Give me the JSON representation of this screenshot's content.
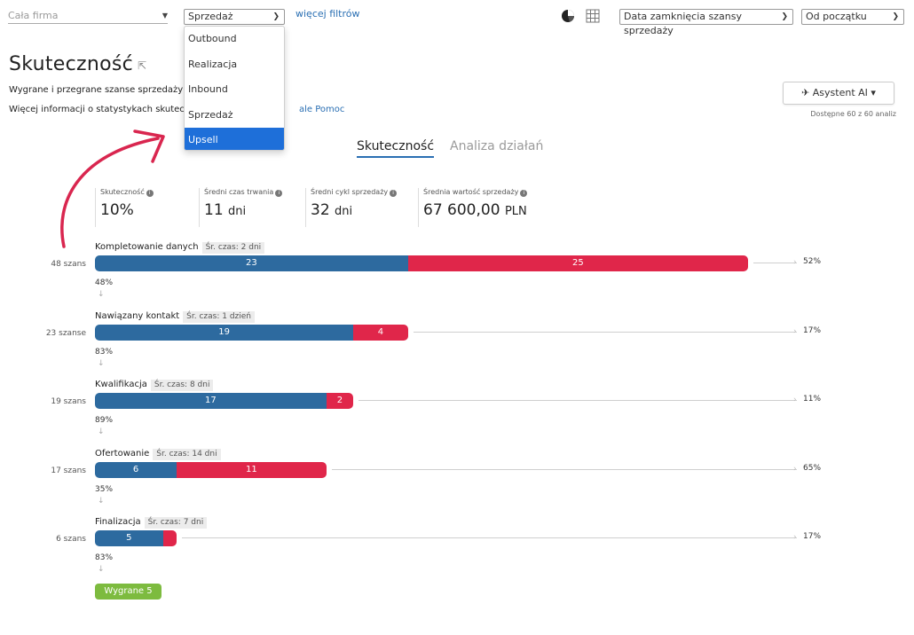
{
  "filters": {
    "company": "Cała firma",
    "pipeline": "Sprzedaż",
    "more_filters": "więcej filtrów",
    "date_field": "Data zamknięcia szansy sprzedaży",
    "period": "Od początku",
    "pipeline_options": [
      "Outbound",
      "Realizacja",
      "Inbound",
      "Sprzedaż",
      "Upsell"
    ],
    "highlighted_option": "Upsell"
  },
  "header": {
    "title": "Skuteczność",
    "subtitle": "Wygrane i przegrane szanse sprzedaży z",
    "info_text": "Więcej informacji o statystykach skutecz",
    "help_link": "ale Pomoc"
  },
  "ai": {
    "button_label": "✈ Asystent AI ▾",
    "note": "Dostępne 60 z 60 analiz"
  },
  "tabs": [
    {
      "label": "Skuteczność",
      "active": true
    },
    {
      "label": "Analiza działań",
      "active": false
    }
  ],
  "stats": [
    {
      "label": "Skuteczność",
      "value": "10%",
      "unit": ""
    },
    {
      "label": "Średni czas trwania",
      "value": "11",
      "unit": "dni"
    },
    {
      "label": "Średni cykl sprzedaży",
      "value": "32",
      "unit": "dni"
    },
    {
      "label": "Średnia wartość sprzedaży",
      "value": "67 600,00",
      "unit": "PLN"
    }
  ],
  "funnel": {
    "stages": [
      {
        "name": "Kompletowanie danych",
        "avg_time": "Śr. czas: 2 dni",
        "count_label": "48 szans",
        "won": 23,
        "lost": 25,
        "conversion": "52%",
        "pass_rate": "48%"
      },
      {
        "name": "Nawiązany kontakt",
        "avg_time": "Śr. czas: 1 dzień",
        "count_label": "23 szanse",
        "won": 19,
        "lost": 4,
        "conversion": "17%",
        "pass_rate": "83%"
      },
      {
        "name": "Kwalifikacja",
        "avg_time": "Śr. czas: 8 dni",
        "count_label": "19 szans",
        "won": 17,
        "lost": 2,
        "conversion": "11%",
        "pass_rate": "89%"
      },
      {
        "name": "Ofertowanie",
        "avg_time": "Śr. czas: 14 dni",
        "count_label": "17 szans",
        "won": 6,
        "lost": 11,
        "conversion": "65%",
        "pass_rate": "35%"
      },
      {
        "name": "Finalizacja",
        "avg_time": "Śr. czas: 7 dni",
        "count_label": "6 szans",
        "won": 5,
        "lost": 1,
        "lost_label": "",
        "conversion": "17%",
        "pass_rate": "83%"
      }
    ],
    "won_badge": "Wygrane 5"
  },
  "colors": {
    "won": "#2d6a9f",
    "lost": "#e0264a",
    "accent": "#2a6fb3",
    "win_badge": "#7dbb3f",
    "annotation_arrow": "#d9264f"
  },
  "icons": [
    "chevron-down-icon",
    "pie-chart-icon",
    "table-grid-icon",
    "pin-icon",
    "info-icon",
    "curved-arrow-annotation-icon"
  ]
}
